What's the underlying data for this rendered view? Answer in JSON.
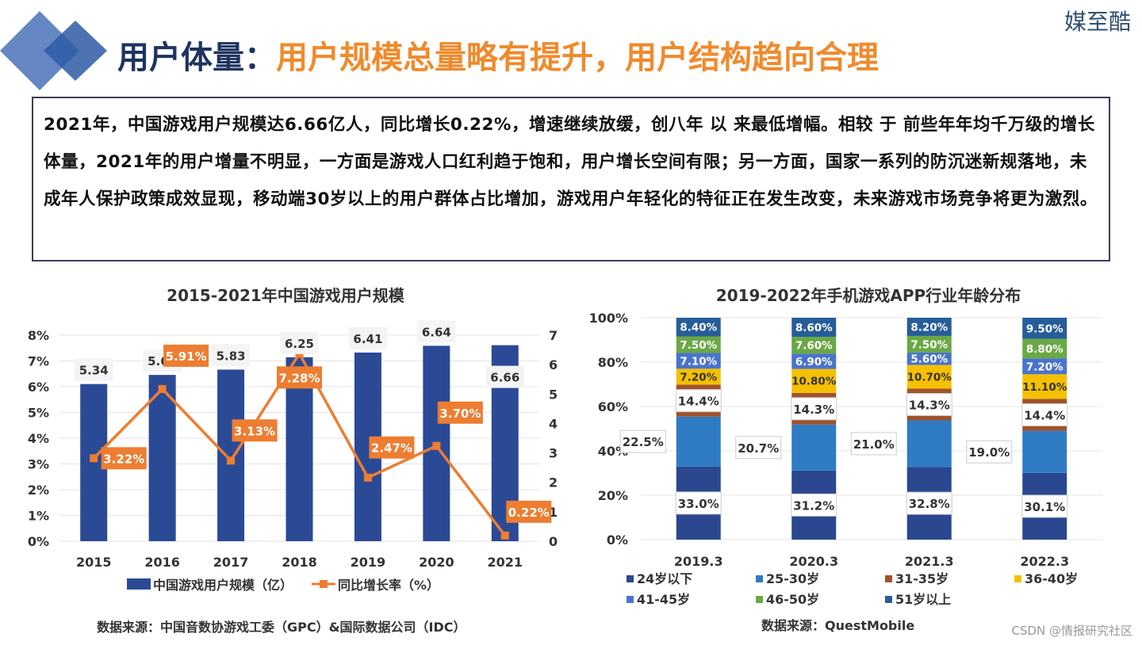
{
  "brand": "媒至酷",
  "header": {
    "title_prefix": "用户体量：",
    "title_main": "用户规模总量略有提升，用户结构趋向合理"
  },
  "intro": "2021年，中国游戏用户规模达6.66亿人，同比增长0.22%，增速继续放缓，创八年 以 来最低增幅。相较 于 前些年年均千万级的增长体量，2021年的用户增量不明显，一方面是游戏人口红利趋于饱和，用户增长空间有限；另一方面，国家一系列的防沉迷新规落地，未成年人保护政策成效显现，移动端30岁以上的用户群体占比增加，游戏用户年轻化的特征正在发生改变，未来游戏市场竞争将更为激烈。",
  "watermark": "CSDN @情报研究社区",
  "colors": {
    "bar": "#2b4a96",
    "line": "#ed7d31",
    "accent": "#f08a2c",
    "title_dark": "#1f3360"
  },
  "chart_data": [
    {
      "type": "bar+line",
      "title": "2015-2021年中国游戏用户规模",
      "categories": [
        "2015",
        "2016",
        "2017",
        "2018",
        "2019",
        "2020",
        "2021"
      ],
      "series": [
        {
          "name": "中国游戏用户规模（亿）",
          "type": "bar",
          "axis": "right",
          "values": [
            5.34,
            5.65,
            5.83,
            6.25,
            6.41,
            6.64,
            6.66
          ],
          "labels": [
            "5.34",
            "5.65",
            "5.83",
            "6.25",
            "6.41",
            "6.64",
            "6.66"
          ]
        },
        {
          "name": "同比增长率（%）",
          "type": "line",
          "axis": "left",
          "values": [
            3.22,
            5.91,
            3.13,
            7.28,
            2.47,
            3.7,
            0.22
          ],
          "labels": [
            "3.22%",
            "5.91%",
            "3.13%",
            "7.28%",
            "2.47%",
            "3.70%",
            "0.22%"
          ]
        }
      ],
      "left_axis": {
        "ylim": [
          0,
          8
        ],
        "ticks": [
          "0%",
          "1%",
          "2%",
          "3%",
          "4%",
          "5%",
          "6%",
          "7%",
          "8%"
        ]
      },
      "right_axis": {
        "ylim": [
          0,
          7
        ],
        "ticks": [
          "0",
          "1",
          "2",
          "3",
          "4",
          "5",
          "6",
          "7"
        ]
      },
      "grid": true,
      "legend": "bottom",
      "source": "数据来源：中国音数协游戏工委（GPC）&国际数据公司（IDC）"
    },
    {
      "type": "stacked-bar",
      "title": "2019-2022年手机游戏APP行业年龄分布",
      "categories": [
        "2019.3",
        "2020.3",
        "2021.3",
        "2022.3"
      ],
      "series": [
        {
          "name": "24岁以下",
          "color": "#2a4790",
          "values": [
            33.0,
            31.2,
            32.8,
            30.1
          ],
          "labels": [
            "33.0%",
            "31.2%",
            "32.8%",
            "30.1%"
          ]
        },
        {
          "name": "25-30岁",
          "color": "#2f7bc4",
          "values": [
            22.5,
            20.7,
            21.0,
            19.0
          ],
          "labels": [
            "22.5%",
            "20.7%",
            "21.0%",
            "19.0%"
          ]
        },
        {
          "name": "31-35岁",
          "color": "#a0522d",
          "values": [
            14.4,
            14.3,
            14.3,
            14.4
          ],
          "labels": [
            "14.4%",
            "14.3%",
            "14.3%",
            "14.4%"
          ]
        },
        {
          "name": "36-40岁",
          "color": "#f5c000",
          "values": [
            7.2,
            10.8,
            10.7,
            11.1
          ],
          "labels": [
            "7.20%",
            "10.80%",
            "10.70%",
            "11.10%"
          ]
        },
        {
          "name": "41-45岁",
          "color": "#4a74cc",
          "values": [
            7.1,
            6.9,
            5.6,
            7.2
          ],
          "labels": [
            "7.10%",
            "6.90%",
            "5.60%",
            "7.20%"
          ]
        },
        {
          "name": "46-50岁",
          "color": "#6aa846",
          "values": [
            7.5,
            7.6,
            7.5,
            8.8
          ],
          "labels": [
            "7.50%",
            "7.60%",
            "7.50%",
            "8.80%"
          ]
        },
        {
          "name": "51岁以上",
          "color": "#265d99",
          "values": [
            8.4,
            8.6,
            8.2,
            9.5
          ],
          "labels": [
            "8.40%",
            "8.60%",
            "8.20%",
            "9.50%"
          ]
        }
      ],
      "yaxis": {
        "ylim": [
          0,
          100
        ],
        "ticks": [
          "0%",
          "20%",
          "40%",
          "60%",
          "80%",
          "100%"
        ]
      },
      "grid": true,
      "legend": "bottom",
      "source": "数据来源：QuestMobile"
    }
  ]
}
